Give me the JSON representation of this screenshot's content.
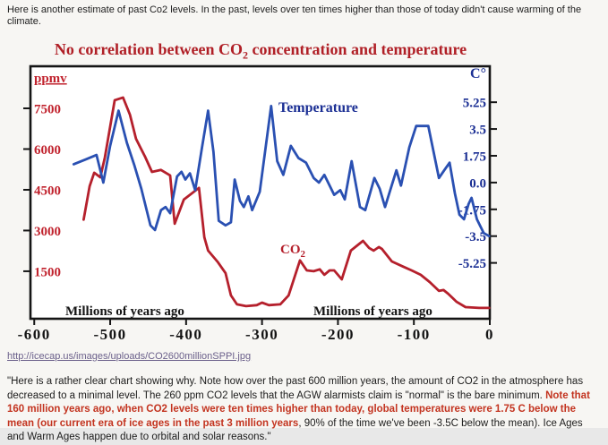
{
  "top_note": "Here is another estimate of past Co2 levels. In the past, levels over ten times higher than those of today didn't cause warming of the climate.",
  "source_link": "http://icecap.us/images/uploads/CO2600millionSPPI.jpg",
  "bottom_paragraph": {
    "normal_1": "\"Here is a rather clear chart showing why. Note how over the past 600 million years, the amount of CO2 in the atmosphere has decreased to a minimal level. The 260 ppm CO2 levels that the AGW alarmists claim is \"normal\" is the bare minimum. ",
    "red_bold": "Note that 160 million years ago, when CO2 levels were ten times higher than today, global temperatures were 1.75 C below the mean (our current era of ice ages in the past 3 million years",
    "normal_2": ", 90% of the time we've been -3.5C below the mean). Ice Ages and Warm Ages happen due to orbital and solar reasons.\""
  },
  "colors": {
    "title_red": "#b01f26",
    "co2_red": "#b5202c",
    "temperature_blue": "#2a50b2",
    "right_axis_blue": "#1b2f94",
    "left_axis_red": "#c1232e",
    "paragraph_red": "#c33420",
    "link_purple": "#6a5f8a",
    "chart_background": "#ffffff"
  },
  "chart_data": {
    "type": "line",
    "title_parts": {
      "pre": "No correlation between CO",
      "sub": "2",
      "post": " concentration and temperature"
    },
    "grid": false,
    "legend_position": "inline-labels",
    "x_axis": {
      "label": "Millions of years ago",
      "ticks": [
        -600,
        -500,
        -400,
        -300,
        -200,
        -100,
        0
      ],
      "range": [
        -605,
        0
      ]
    },
    "left_axis": {
      "label": "ppmv",
      "ticks": [
        7500,
        6000,
        4500,
        3000,
        1500
      ],
      "range": [
        -250,
        9050
      ]
    },
    "right_axis": {
      "label": "C°",
      "ticks": [
        [
          5.25,
          "5.25"
        ],
        [
          3.5,
          "3.5"
        ],
        [
          1.75,
          "1.75"
        ],
        [
          0,
          "0.0"
        ],
        [
          -1.75,
          "-1.75"
        ],
        [
          -3.5,
          "-3.5"
        ],
        [
          -5.25,
          "-5.25"
        ]
      ],
      "range": [
        -8.9,
        7.6
      ]
    },
    "series": [
      {
        "name": "CO2",
        "label_pre": "CO",
        "label_sub": "2",
        "axis": "left",
        "unit": "ppmv",
        "color": "#b5202c",
        "points": [
          [
            -535,
            3400
          ],
          [
            -527,
            4630
          ],
          [
            -521,
            5130
          ],
          [
            -513,
            4960
          ],
          [
            -507,
            5690
          ],
          [
            -494,
            7800
          ],
          [
            -483,
            7900
          ],
          [
            -474,
            7270
          ],
          [
            -466,
            6380
          ],
          [
            -459,
            5990
          ],
          [
            -454,
            5720
          ],
          [
            -445,
            5160
          ],
          [
            -433,
            5230
          ],
          [
            -421,
            5030
          ],
          [
            -415,
            3250
          ],
          [
            -403,
            4140
          ],
          [
            -383,
            4570
          ],
          [
            -376,
            2750
          ],
          [
            -371,
            2260
          ],
          [
            -358,
            1830
          ],
          [
            -348,
            1430
          ],
          [
            -341,
            610
          ],
          [
            -333,
            280
          ],
          [
            -321,
            215
          ],
          [
            -307,
            250
          ],
          [
            -300,
            345
          ],
          [
            -291,
            250
          ],
          [
            -276,
            280
          ],
          [
            -265,
            610
          ],
          [
            -250,
            1900
          ],
          [
            -241,
            1530
          ],
          [
            -232,
            1500
          ],
          [
            -224,
            1570
          ],
          [
            -218,
            1370
          ],
          [
            -211,
            1530
          ],
          [
            -205,
            1530
          ],
          [
            -195,
            1200
          ],
          [
            -183,
            2260
          ],
          [
            -167,
            2620
          ],
          [
            -159,
            2360
          ],
          [
            -153,
            2260
          ],
          [
            -146,
            2390
          ],
          [
            -142,
            2320
          ],
          [
            -129,
            1860
          ],
          [
            -114,
            1670
          ],
          [
            -103,
            1530
          ],
          [
            -91,
            1370
          ],
          [
            -79,
            1100
          ],
          [
            -67,
            775
          ],
          [
            -61,
            810
          ],
          [
            -55,
            675
          ],
          [
            -44,
            380
          ],
          [
            -32,
            180
          ],
          [
            -14,
            150
          ],
          [
            -1,
            150
          ]
        ]
      },
      {
        "name": "Temperature",
        "label": "Temperature",
        "axis": "right",
        "unit": "C",
        "color": "#2a50b2",
        "points": [
          [
            -548,
            1.2
          ],
          [
            -533,
            1.5
          ],
          [
            -518,
            1.8
          ],
          [
            -509,
            0.0
          ],
          [
            -500,
            2.4
          ],
          [
            -489,
            4.7
          ],
          [
            -478,
            2.6
          ],
          [
            -468,
            1.1
          ],
          [
            -459,
            -0.4
          ],
          [
            -447,
            -2.8
          ],
          [
            -441,
            -3.1
          ],
          [
            -433,
            -1.8
          ],
          [
            -427,
            -1.6
          ],
          [
            -421,
            -2.0
          ],
          [
            -412,
            0.4
          ],
          [
            -406,
            0.7
          ],
          [
            -401,
            0.2
          ],
          [
            -395,
            0.6
          ],
          [
            -388,
            -0.5
          ],
          [
            -379,
            2.3
          ],
          [
            -371,
            4.7
          ],
          [
            -364,
            2.0
          ],
          [
            -357,
            -2.5
          ],
          [
            -348,
            -2.8
          ],
          [
            -341,
            -2.6
          ],
          [
            -336,
            0.2
          ],
          [
            -329,
            -1.2
          ],
          [
            -324,
            -1.6
          ],
          [
            -318,
            -0.9
          ],
          [
            -313,
            -1.8
          ],
          [
            -303,
            -0.6
          ],
          [
            -288,
            5.0
          ],
          [
            -280,
            1.4
          ],
          [
            -272,
            0.5
          ],
          [
            -262,
            2.4
          ],
          [
            -252,
            1.6
          ],
          [
            -242,
            1.3
          ],
          [
            -232,
            0.3
          ],
          [
            -225,
            0.0
          ],
          [
            -218,
            0.5
          ],
          [
            -205,
            -0.8
          ],
          [
            -197,
            -0.5
          ],
          [
            -191,
            -1.1
          ],
          [
            -182,
            1.4
          ],
          [
            -171,
            -1.6
          ],
          [
            -164,
            -1.8
          ],
          [
            -152,
            0.3
          ],
          [
            -145,
            -0.4
          ],
          [
            -138,
            -1.6
          ],
          [
            -123,
            0.8
          ],
          [
            -117,
            -0.2
          ],
          [
            -106,
            2.3
          ],
          [
            -97,
            3.7
          ],
          [
            -81,
            3.7
          ],
          [
            -67,
            0.3
          ],
          [
            -60,
            0.8
          ],
          [
            -53,
            1.3
          ],
          [
            -46,
            -0.7
          ],
          [
            -40,
            -2.1
          ],
          [
            -34,
            -2.4
          ],
          [
            -28,
            -1.4
          ],
          [
            -24,
            -1.0
          ],
          [
            -17,
            -2.4
          ],
          [
            -8,
            -3.3
          ],
          [
            -1,
            -3.5
          ]
        ]
      }
    ]
  }
}
